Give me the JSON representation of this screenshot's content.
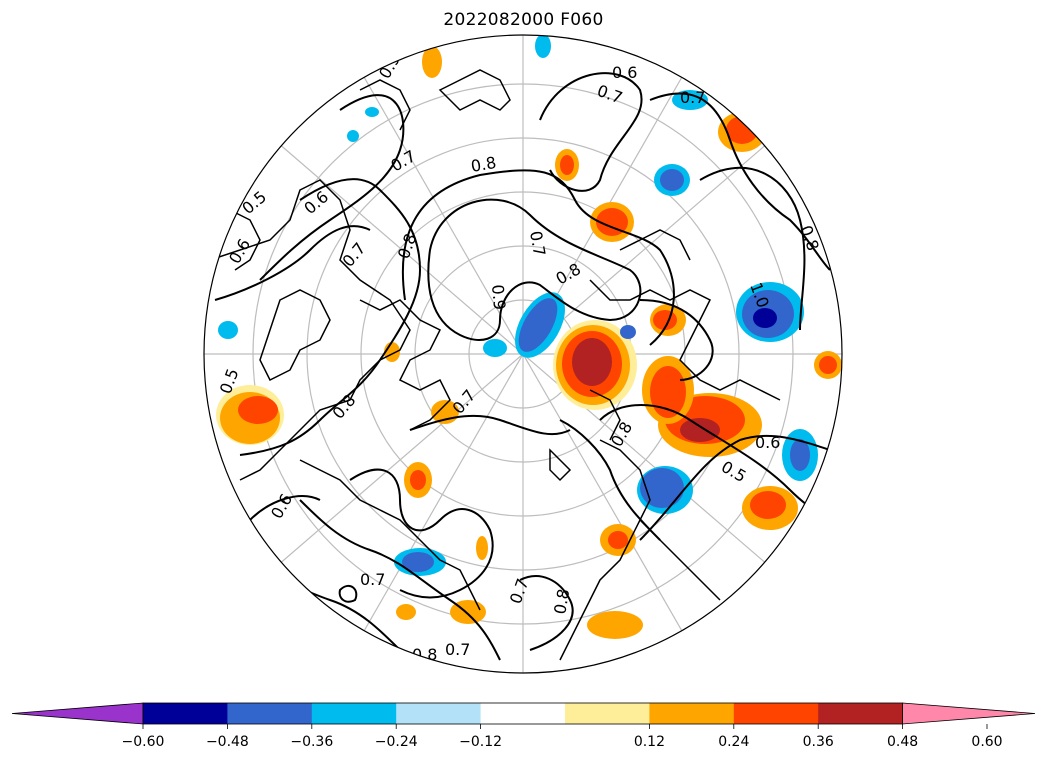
{
  "title": "2022082000 F060",
  "colorbar": {
    "colors": [
      "#9933cc",
      "#000099",
      "#3366cc",
      "#00bbee",
      "#b3e2f8",
      "#ffffff",
      "#ffee99",
      "#ffa500",
      "#ff4400",
      "#b22222",
      "#ff88aa"
    ],
    "tick_labels": [
      "−0.60",
      "−0.48",
      "−0.36",
      "−0.24",
      "−0.12",
      "0.12",
      "0.24",
      "0.36",
      "0.48",
      "0.60"
    ],
    "tick_values": [
      -0.6,
      -0.48,
      -0.36,
      -0.24,
      -0.12,
      0.12,
      0.24,
      0.36,
      0.48,
      0.6
    ],
    "extend": "both"
  },
  "contour_labels": [
    "0.9",
    "0.7",
    "0.5",
    "0.6",
    "0.7",
    "0.8",
    "0.8",
    "0.7",
    "0.9",
    "0.8",
    "0.7",
    "0.6",
    "1.0",
    "0.8",
    "0.7",
    "0.6",
    "0.5",
    "0.6",
    "0.7",
    "0.8",
    "0.7",
    "0.8",
    "0.7",
    "0.6",
    "0.5",
    "0.8",
    "0.7",
    "0.8"
  ],
  "projection": "north-polar-stereographic"
}
